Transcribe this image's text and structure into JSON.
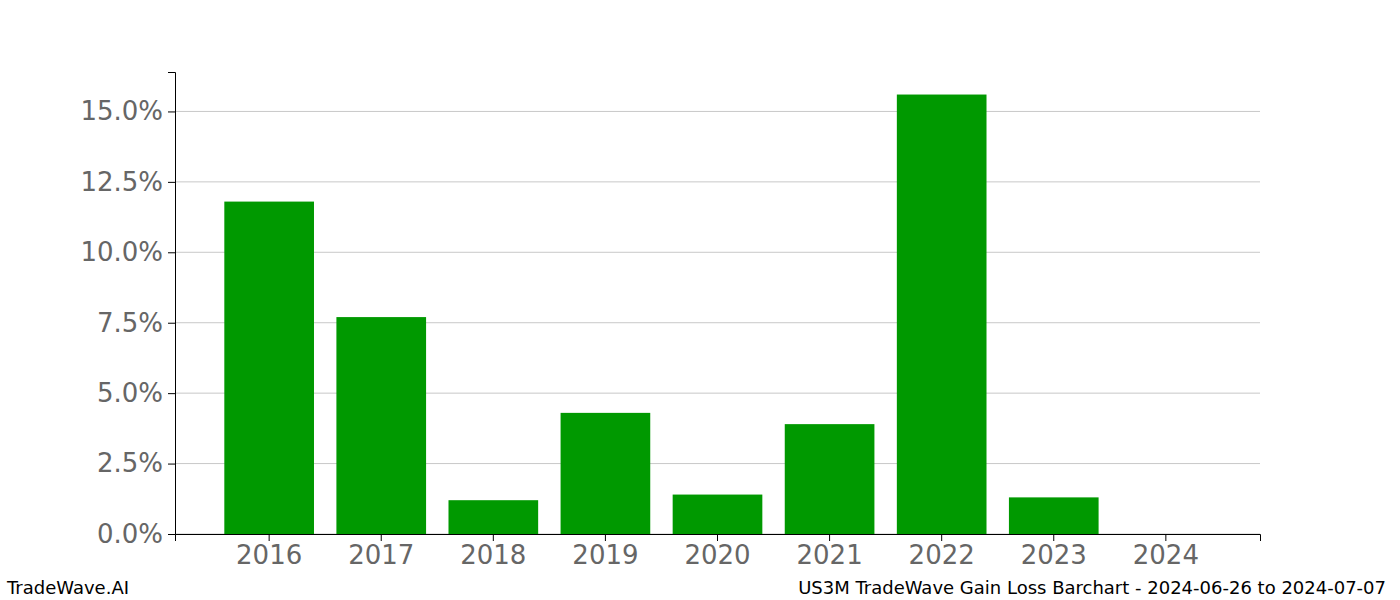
{
  "chart_data": {
    "type": "bar",
    "title": "US3M TradeWave Gain Loss Barchart - 2024-06-26 to 2024-07-07",
    "annotations": [
      "TradeWave.AI"
    ],
    "categories": [
      "2016",
      "2017",
      "2018",
      "2019",
      "2020",
      "2021",
      "2022",
      "2023",
      "2024"
    ],
    "values": [
      11.8,
      7.7,
      1.2,
      4.3,
      1.4,
      3.9,
      15.6,
      1.3,
      0
    ],
    "color": "#009900",
    "ylim": [
      0,
      16.4
    ],
    "yticks": [
      {
        "value": 0,
        "label": "0.0%"
      },
      {
        "value": 2.5,
        "label": "2.5%"
      },
      {
        "value": 5,
        "label": "5.0%"
      },
      {
        "value": 7.5,
        "label": "7.5%"
      },
      {
        "value": 10,
        "label": "10.0%"
      },
      {
        "value": 12.5,
        "label": "12.5%"
      },
      {
        "value": 15,
        "label": "15.0%"
      }
    ],
    "grid": true
  }
}
